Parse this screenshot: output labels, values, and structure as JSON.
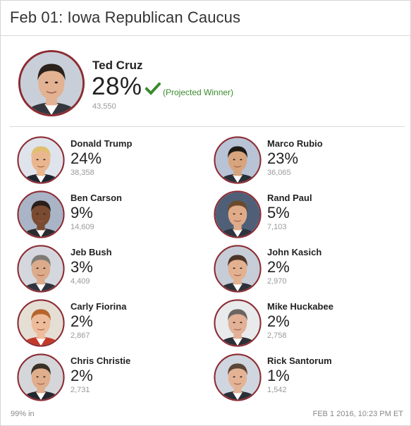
{
  "header": {
    "title": "Feb 01: Iowa Republican Caucus"
  },
  "winner": {
    "name": "Ted Cruz",
    "percent": "28%",
    "status": "(Projected Winner)",
    "votes": "43,550",
    "skin": "#e2b292",
    "hair": "#2b221c",
    "suit": "#33373d",
    "bg": "#c9cfd8"
  },
  "candidates": [
    {
      "name": "Donald Trump",
      "percent": "24%",
      "votes": "38,358",
      "skin": "#eab68f",
      "hair": "#e0c070",
      "suit": "#1e2430",
      "bg": "#dfe4ec"
    },
    {
      "name": "Marco Rubio",
      "percent": "23%",
      "votes": "36,065",
      "skin": "#d8a47e",
      "hair": "#1f1a16",
      "suit": "#2a2f38",
      "bg": "#b8c3d6"
    },
    {
      "name": "Ben Carson",
      "percent": "9%",
      "votes": "14,609",
      "skin": "#7a4a31",
      "hair": "#2a1f19",
      "suit": "#2c2c30",
      "bg": "#a9b4c7"
    },
    {
      "name": "Rand Paul",
      "percent": "5%",
      "votes": "7,103",
      "skin": "#e0ab88",
      "hair": "#6b4a2c",
      "suit": "#2e3440",
      "bg": "#4f5f78"
    },
    {
      "name": "Jeb Bush",
      "percent": "3%",
      "votes": "4,409",
      "skin": "#dcab8b",
      "hair": "#7f7a74",
      "suit": "#30353e",
      "bg": "#d4d8de"
    },
    {
      "name": "John Kasich",
      "percent": "2%",
      "votes": "2,970",
      "skin": "#e3b090",
      "hair": "#4a3628",
      "suit": "#2d3138",
      "bg": "#c6cdd7"
    },
    {
      "name": "Carly Fiorina",
      "percent": "2%",
      "votes": "2,867",
      "skin": "#eebc9b",
      "hair": "#b5652c",
      "suit": "#c23a2a",
      "bg": "#e5ded5"
    },
    {
      "name": "Mike Huckabee",
      "percent": "2%",
      "votes": "2,758",
      "skin": "#e2b196",
      "hair": "#6a6560",
      "suit": "#2b2f36",
      "bg": "#e8eaec"
    },
    {
      "name": "Chris Christie",
      "percent": "2%",
      "votes": "2,731",
      "skin": "#e0ad8d",
      "hair": "#3b2f27",
      "suit": "#23272e",
      "bg": "#d4d6da"
    },
    {
      "name": "Rick Santorum",
      "percent": "1%",
      "votes": "1,542",
      "skin": "#e4b395",
      "hair": "#5a4636",
      "suit": "#2b2f37",
      "bg": "#cfd6e0"
    }
  ],
  "footer": {
    "reporting": "99% in",
    "timestamp": "FEB 1 2016, 10:23 PM ET"
  },
  "colors": {
    "ring": "#8b2c33",
    "check": "#3b8a2e",
    "projected_text": "#3b8a2e",
    "muted": "#999999"
  },
  "icons": {
    "winner_check": "checkmark-icon"
  }
}
